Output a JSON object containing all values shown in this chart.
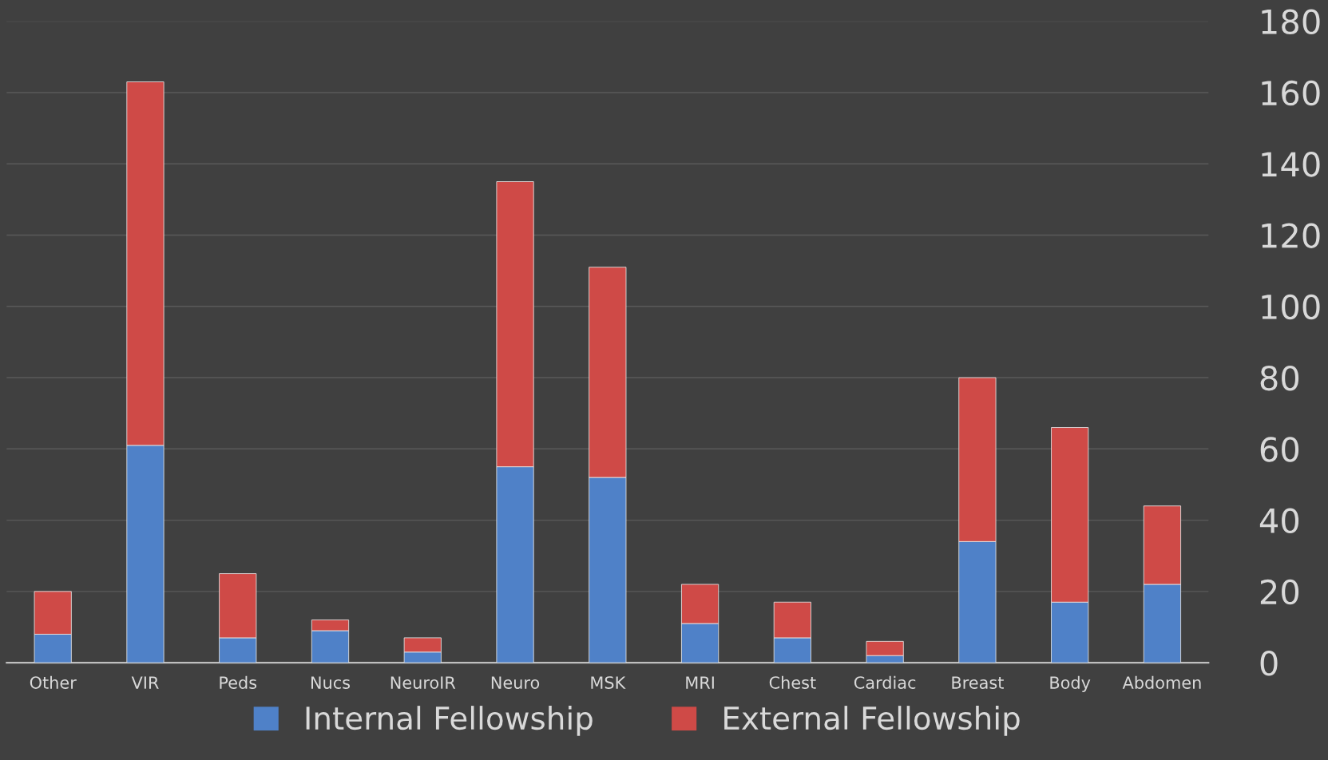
{
  "chart_data": {
    "type": "bar",
    "stacked": true,
    "categories": [
      "Other",
      "VIR",
      "Peds",
      "Nucs",
      "NeuroIR",
      "Neuro",
      "MSK",
      "MRI",
      "Chest",
      "Cardiac",
      "Breast",
      "Body",
      "Abdomen"
    ],
    "series": [
      {
        "name": "Internal Fellowship",
        "color": "#4f81c8",
        "values": [
          8,
          61,
          7,
          9,
          3,
          55,
          52,
          11,
          7,
          2,
          34,
          17,
          22
        ]
      },
      {
        "name": "External Fellowship",
        "color": "#cf4a47",
        "values": [
          12,
          102,
          18,
          3,
          4,
          80,
          59,
          11,
          10,
          4,
          46,
          49,
          22
        ]
      }
    ],
    "ylim": [
      0,
      180
    ],
    "yticks": [
      0,
      20,
      40,
      60,
      80,
      100,
      120,
      140,
      160,
      180
    ],
    "grid": "y",
    "legend": "bottom"
  }
}
